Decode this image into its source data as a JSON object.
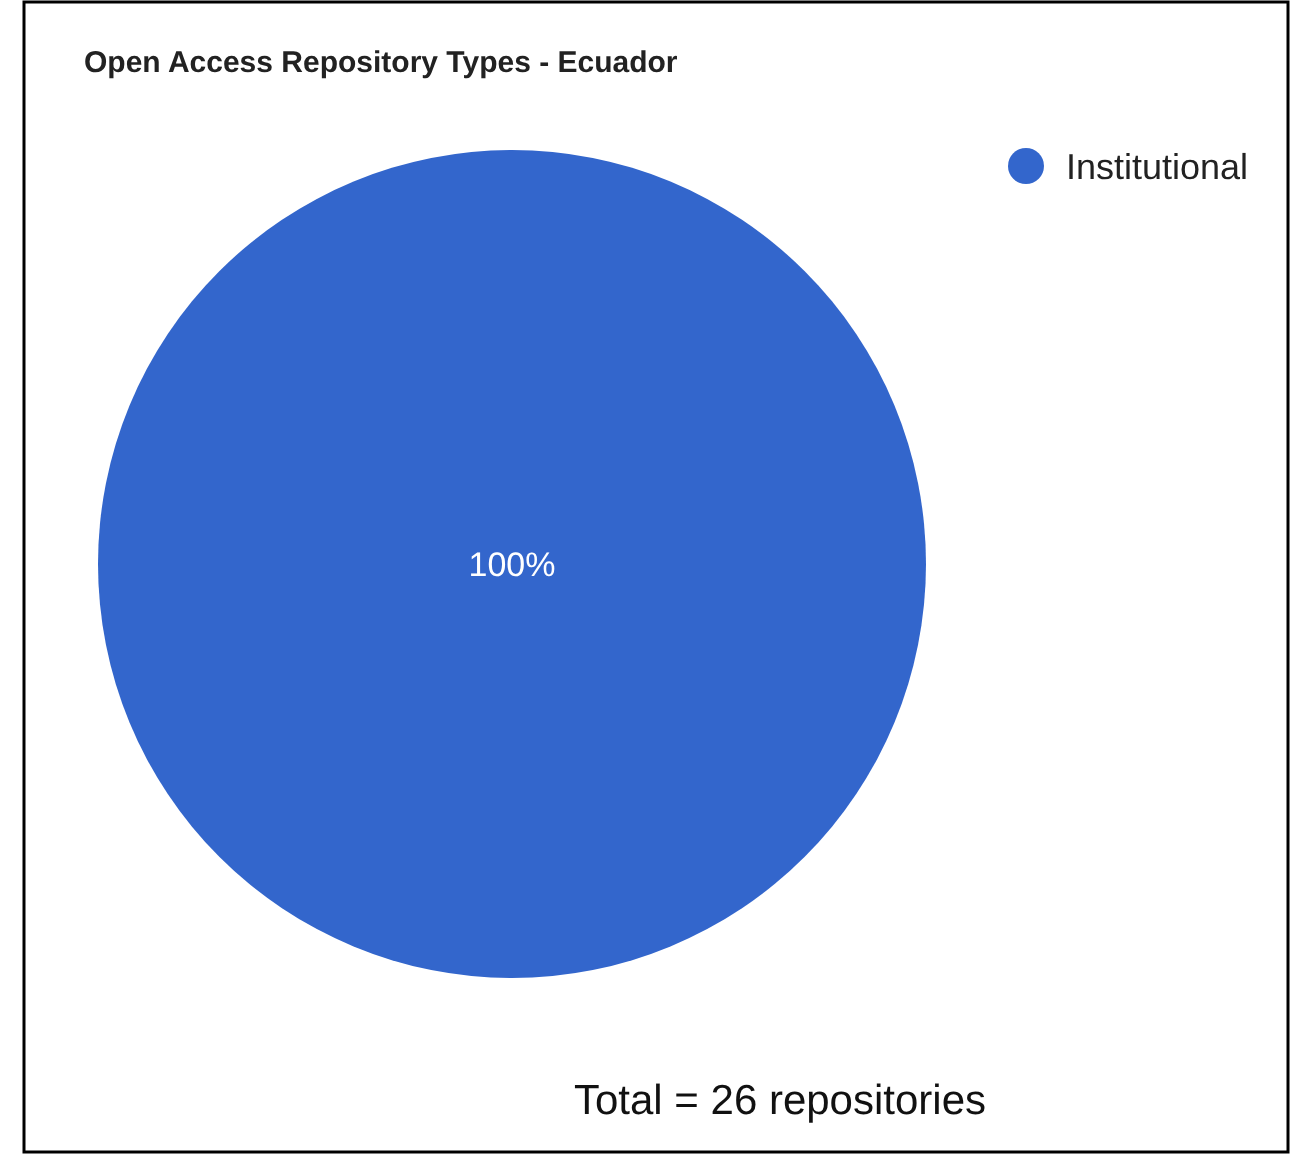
{
  "chart_data": {
    "type": "pie",
    "title": "Open Access Repository Types - Ecuador",
    "categories": [
      "Institutional"
    ],
    "values": [
      100
    ],
    "colors": [
      "#3366cc"
    ],
    "value_labels": [
      "100%"
    ],
    "legend": "top right",
    "annotations": [
      "Total = 26 repositories"
    ]
  }
}
